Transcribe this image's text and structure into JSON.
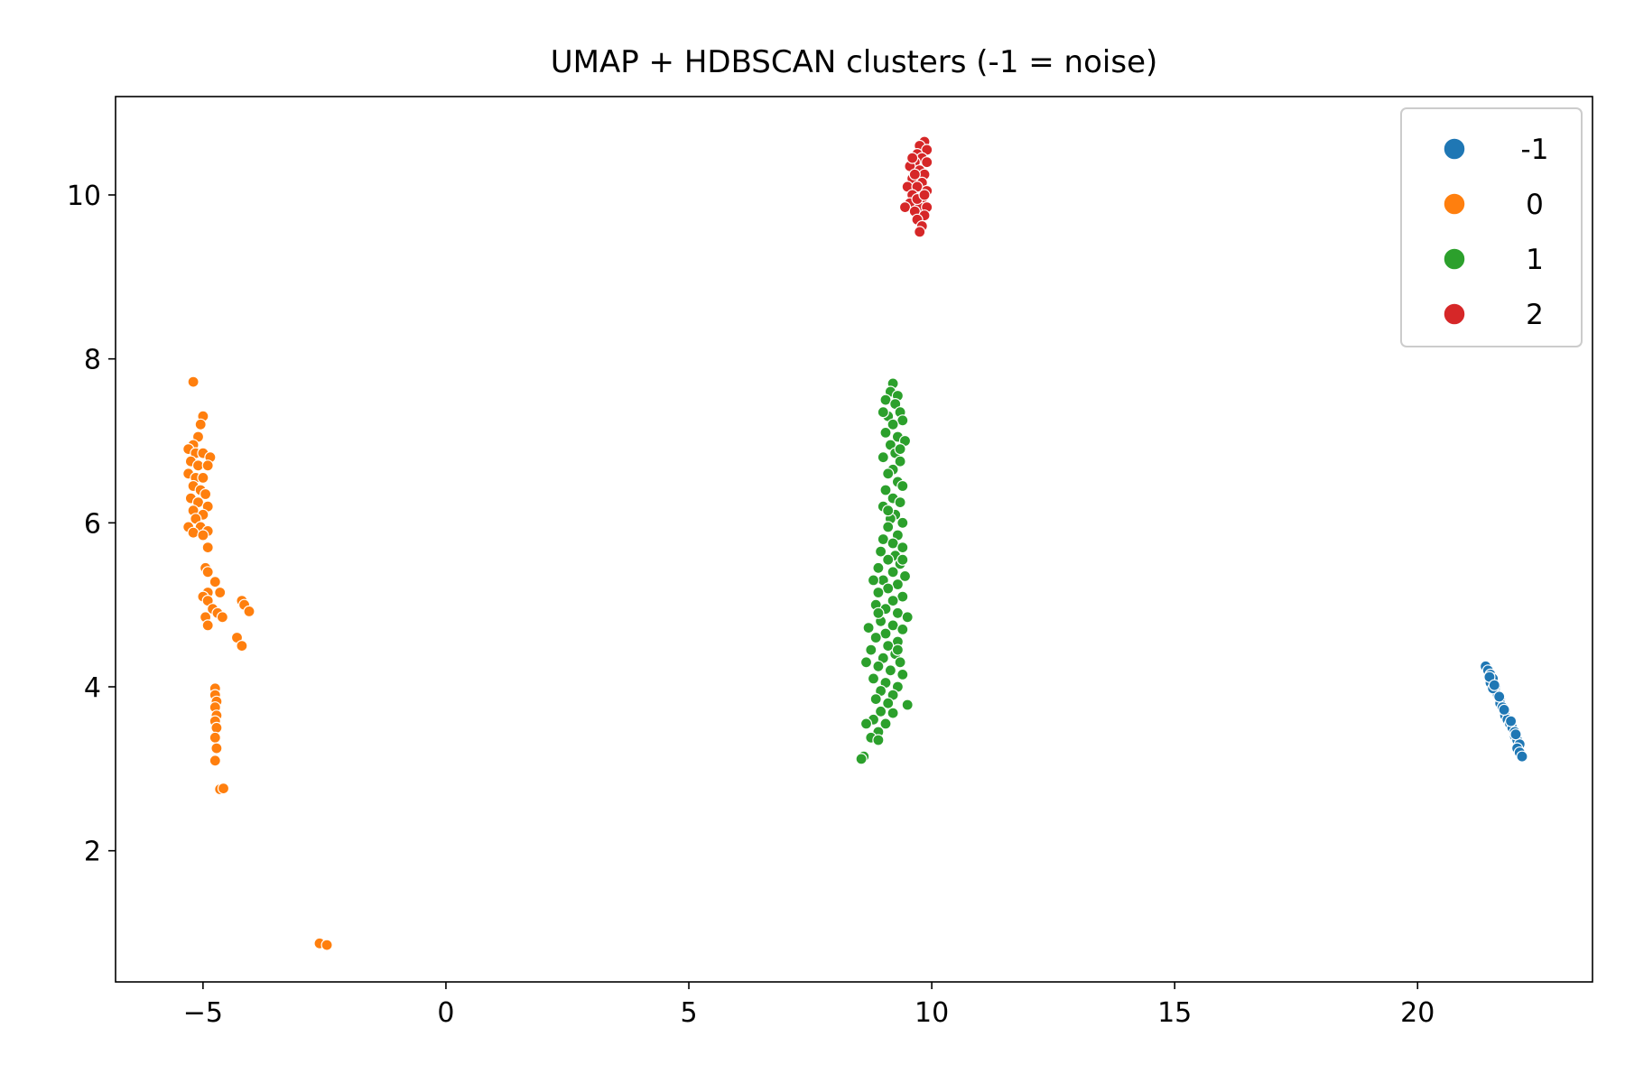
{
  "chart_data": {
    "type": "scatter",
    "title": "UMAP + HDBSCAN clusters (-1 = noise)",
    "xlabel": "",
    "ylabel": "",
    "xlim": [
      -6.8,
      23.6
    ],
    "ylim": [
      0.4,
      11.2
    ],
    "xticks": [
      -5,
      0,
      5,
      10,
      15,
      20
    ],
    "yticks": [
      2,
      4,
      6,
      8,
      10
    ],
    "grid": false,
    "legend_position": "top-right",
    "series": [
      {
        "name": "-1",
        "color": "#1f77b4",
        "points": [
          [
            21.4,
            4.25
          ],
          [
            21.45,
            4.2
          ],
          [
            21.5,
            4.15
          ],
          [
            21.55,
            4.1
          ],
          [
            21.5,
            4.05
          ],
          [
            21.6,
            4.0
          ],
          [
            21.6,
            3.95
          ],
          [
            21.65,
            3.9
          ],
          [
            21.7,
            3.85
          ],
          [
            21.7,
            3.8
          ],
          [
            21.75,
            3.75
          ],
          [
            21.8,
            3.7
          ],
          [
            21.8,
            3.65
          ],
          [
            21.85,
            3.6
          ],
          [
            21.9,
            3.55
          ],
          [
            21.95,
            3.5
          ],
          [
            22.0,
            3.45
          ],
          [
            22.0,
            3.4
          ],
          [
            22.05,
            3.35
          ],
          [
            22.1,
            3.3
          ],
          [
            22.05,
            3.25
          ],
          [
            22.1,
            3.2
          ],
          [
            22.15,
            3.15
          ],
          [
            21.55,
            3.98
          ],
          [
            21.68,
            3.88
          ],
          [
            21.78,
            3.72
          ],
          [
            21.92,
            3.58
          ],
          [
            22.02,
            3.42
          ],
          [
            21.48,
            4.12
          ],
          [
            21.58,
            4.02
          ]
        ]
      },
      {
        "name": "0",
        "color": "#ff7f0e",
        "points": [
          [
            -5.2,
            7.72
          ],
          [
            -5.0,
            7.3
          ],
          [
            -5.05,
            7.2
          ],
          [
            -5.1,
            7.05
          ],
          [
            -5.2,
            6.95
          ],
          [
            -5.3,
            6.9
          ],
          [
            -5.15,
            6.85
          ],
          [
            -5.0,
            6.85
          ],
          [
            -4.85,
            6.8
          ],
          [
            -5.25,
            6.75
          ],
          [
            -5.1,
            6.7
          ],
          [
            -4.9,
            6.7
          ],
          [
            -5.3,
            6.6
          ],
          [
            -5.15,
            6.55
          ],
          [
            -5.0,
            6.55
          ],
          [
            -5.2,
            6.45
          ],
          [
            -5.05,
            6.4
          ],
          [
            -4.95,
            6.35
          ],
          [
            -5.25,
            6.3
          ],
          [
            -5.1,
            6.25
          ],
          [
            -4.9,
            6.2
          ],
          [
            -5.2,
            6.15
          ],
          [
            -5.0,
            6.1
          ],
          [
            -5.15,
            6.05
          ],
          [
            -5.3,
            5.95
          ],
          [
            -5.05,
            5.95
          ],
          [
            -4.9,
            5.9
          ],
          [
            -5.2,
            5.88
          ],
          [
            -5.0,
            5.85
          ],
          [
            -4.9,
            5.7
          ],
          [
            -4.95,
            5.45
          ],
          [
            -4.9,
            5.4
          ],
          [
            -4.75,
            5.28
          ],
          [
            -4.65,
            5.15
          ],
          [
            -4.9,
            5.15
          ],
          [
            -5.0,
            5.1
          ],
          [
            -4.9,
            5.05
          ],
          [
            -4.2,
            5.05
          ],
          [
            -4.15,
            5.0
          ],
          [
            -4.05,
            4.92
          ],
          [
            -4.8,
            4.95
          ],
          [
            -4.7,
            4.9
          ],
          [
            -4.95,
            4.85
          ],
          [
            -4.6,
            4.85
          ],
          [
            -4.9,
            4.75
          ],
          [
            -4.3,
            4.6
          ],
          [
            -4.2,
            4.5
          ],
          [
            -4.75,
            3.98
          ],
          [
            -4.75,
            3.9
          ],
          [
            -4.72,
            3.82
          ],
          [
            -4.75,
            3.75
          ],
          [
            -4.72,
            3.65
          ],
          [
            -4.75,
            3.58
          ],
          [
            -4.72,
            3.5
          ],
          [
            -4.75,
            3.38
          ],
          [
            -4.72,
            3.25
          ],
          [
            -4.75,
            3.1
          ],
          [
            -4.65,
            2.75
          ],
          [
            -4.58,
            2.76
          ],
          [
            -2.6,
            0.87
          ],
          [
            -2.45,
            0.85
          ]
        ]
      },
      {
        "name": "1",
        "color": "#2ca02c",
        "points": [
          [
            9.2,
            7.7
          ],
          [
            9.15,
            7.6
          ],
          [
            9.3,
            7.55
          ],
          [
            9.05,
            7.5
          ],
          [
            9.25,
            7.45
          ],
          [
            9.35,
            7.35
          ],
          [
            9.1,
            7.3
          ],
          [
            9.4,
            7.25
          ],
          [
            9.2,
            7.2
          ],
          [
            9.05,
            7.1
          ],
          [
            9.3,
            7.05
          ],
          [
            9.45,
            7.0
          ],
          [
            9.15,
            6.95
          ],
          [
            9.25,
            6.85
          ],
          [
            9.0,
            6.8
          ],
          [
            9.35,
            6.75
          ],
          [
            9.2,
            6.65
          ],
          [
            9.1,
            6.6
          ],
          [
            9.3,
            6.5
          ],
          [
            9.4,
            6.45
          ],
          [
            9.05,
            6.4
          ],
          [
            9.2,
            6.3
          ],
          [
            9.35,
            6.25
          ],
          [
            9.0,
            6.2
          ],
          [
            9.25,
            6.1
          ],
          [
            9.15,
            6.05
          ],
          [
            9.4,
            6.0
          ],
          [
            9.1,
            5.95
          ],
          [
            9.3,
            5.85
          ],
          [
            9.0,
            5.8
          ],
          [
            9.2,
            5.75
          ],
          [
            9.4,
            5.7
          ],
          [
            8.95,
            5.65
          ],
          [
            9.25,
            5.6
          ],
          [
            9.1,
            5.55
          ],
          [
            9.35,
            5.5
          ],
          [
            8.9,
            5.45
          ],
          [
            9.2,
            5.4
          ],
          [
            9.45,
            5.35
          ],
          [
            9.0,
            5.3
          ],
          [
            8.8,
            5.3
          ],
          [
            9.3,
            5.25
          ],
          [
            9.1,
            5.2
          ],
          [
            8.9,
            5.15
          ],
          [
            9.4,
            5.1
          ],
          [
            9.2,
            5.05
          ],
          [
            8.85,
            5.0
          ],
          [
            9.05,
            4.95
          ],
          [
            9.3,
            4.9
          ],
          [
            9.5,
            4.85
          ],
          [
            8.95,
            4.8
          ],
          [
            9.2,
            4.75
          ],
          [
            8.7,
            4.72
          ],
          [
            9.4,
            4.7
          ],
          [
            9.05,
            4.65
          ],
          [
            8.85,
            4.6
          ],
          [
            9.3,
            4.55
          ],
          [
            9.1,
            4.5
          ],
          [
            8.75,
            4.45
          ],
          [
            9.25,
            4.4
          ],
          [
            9.0,
            4.35
          ],
          [
            8.65,
            4.3
          ],
          [
            9.35,
            4.3
          ],
          [
            8.9,
            4.25
          ],
          [
            9.15,
            4.2
          ],
          [
            9.4,
            4.15
          ],
          [
            8.8,
            4.1
          ],
          [
            9.05,
            4.05
          ],
          [
            9.3,
            4.0
          ],
          [
            8.95,
            3.95
          ],
          [
            9.2,
            3.9
          ],
          [
            8.85,
            3.85
          ],
          [
            9.1,
            3.8
          ],
          [
            9.5,
            3.78
          ],
          [
            8.95,
            3.7
          ],
          [
            9.2,
            3.68
          ],
          [
            8.8,
            3.6
          ],
          [
            9.05,
            3.55
          ],
          [
            8.65,
            3.55
          ],
          [
            8.9,
            3.45
          ],
          [
            8.75,
            3.38
          ],
          [
            8.9,
            3.35
          ],
          [
            8.6,
            3.15
          ],
          [
            8.55,
            3.12
          ],
          [
            9.0,
            7.35
          ],
          [
            9.35,
            6.9
          ],
          [
            9.1,
            6.15
          ],
          [
            9.4,
            5.55
          ],
          [
            8.9,
            4.9
          ],
          [
            9.3,
            4.45
          ]
        ]
      },
      {
        "name": "2",
        "color": "#d62728",
        "points": [
          [
            9.85,
            10.65
          ],
          [
            9.75,
            10.6
          ],
          [
            9.9,
            10.55
          ],
          [
            9.7,
            10.5
          ],
          [
            9.8,
            10.45
          ],
          [
            9.65,
            10.4
          ],
          [
            9.9,
            10.4
          ],
          [
            9.55,
            10.35
          ],
          [
            9.75,
            10.3
          ],
          [
            9.85,
            10.25
          ],
          [
            9.6,
            10.2
          ],
          [
            9.8,
            10.15
          ],
          [
            9.5,
            10.1
          ],
          [
            9.7,
            10.1
          ],
          [
            9.9,
            10.05
          ],
          [
            9.6,
            10.0
          ],
          [
            9.8,
            9.95
          ],
          [
            9.55,
            9.9
          ],
          [
            9.75,
            9.85
          ],
          [
            9.9,
            9.85
          ],
          [
            9.45,
            9.85
          ],
          [
            9.65,
            9.8
          ],
          [
            9.85,
            9.75
          ],
          [
            9.7,
            9.7
          ],
          [
            9.8,
            9.62
          ],
          [
            9.75,
            9.55
          ],
          [
            9.6,
            10.45
          ],
          [
            9.7,
            9.95
          ],
          [
            9.65,
            10.25
          ],
          [
            9.85,
            10.0
          ]
        ]
      }
    ]
  }
}
